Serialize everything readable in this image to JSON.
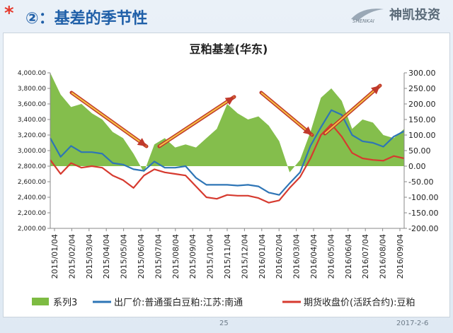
{
  "header": {
    "star": "*",
    "title": "②：基差的季节性",
    "logo_text": "神凯投资",
    "logo_mark": "SHENKAI"
  },
  "footer": {
    "page": "25",
    "date": "2017-2-6"
  },
  "chart_data": {
    "type": "area",
    "title": "豆粕基差(华东)",
    "ylim_left": [
      2000,
      4000
    ],
    "ylim_right": [
      -200,
      300
    ],
    "left_ticks": [
      "2,000.00",
      "2,200.00",
      "2,400.00",
      "2,600.00",
      "2,800.00",
      "3,000.00",
      "3,200.00",
      "3,400.00",
      "3,600.00",
      "3,800.00",
      "4,000.00"
    ],
    "right_ticks": [
      "-200.00",
      "-150.00",
      "-100.00",
      "-50.00",
      "0.00",
      "50.00",
      "100.00",
      "150.00",
      "200.00",
      "250.00",
      "300.00"
    ],
    "x_labels": [
      "2015/01/04",
      "2015/02/04",
      "2015/03/04",
      "2015/04/04",
      "2015/05/04",
      "2015/06/04",
      "2015/07/04",
      "2015/08/04",
      "2015/09/04",
      "2015/10/04",
      "2015/11/04",
      "2015/12/04",
      "2016/01/04",
      "2016/02/04",
      "2016/03/04",
      "2016/04/04",
      "2016/05/04",
      "2016/06/04",
      "2016/07/04",
      "2016/08/04",
      "2016/09/04"
    ],
    "legend_position": "bottom",
    "series": [
      {
        "name": "系列3",
        "axis": "right",
        "color": "#7dbb42",
        "values": [
          300,
          230,
          190,
          200,
          170,
          150,
          110,
          90,
          40,
          -20,
          70,
          90,
          60,
          70,
          60,
          90,
          120,
          200,
          170,
          150,
          160,
          130,
          80,
          -20,
          20,
          110,
          220,
          250,
          210,
          120,
          150,
          140,
          100,
          90,
          120
        ]
      },
      {
        "name": "出厂价:普通蛋白豆粕:江苏:南通",
        "axis": "left",
        "color": "#2e75b6",
        "values": [
          3160,
          2920,
          3060,
          2980,
          2980,
          2960,
          2840,
          2820,
          2760,
          2740,
          2860,
          2780,
          2780,
          2800,
          2650,
          2560,
          2560,
          2560,
          2550,
          2560,
          2540,
          2460,
          2430,
          2580,
          2720,
          3060,
          3300,
          3520,
          3460,
          3200,
          3120,
          3100,
          3050,
          3180,
          3250
        ]
      },
      {
        "name": "期货收盘价(活跃合约):豆粕",
        "axis": "left",
        "color": "#d63a2f",
        "values": [
          2880,
          2700,
          2840,
          2780,
          2800,
          2780,
          2680,
          2620,
          2520,
          2680,
          2760,
          2720,
          2700,
          2680,
          2540,
          2400,
          2380,
          2430,
          2420,
          2420,
          2390,
          2330,
          2360,
          2520,
          2660,
          2900,
          3200,
          3340,
          3180,
          2970,
          2900,
          2880,
          2870,
          2930,
          2900
        ]
      }
    ]
  }
}
